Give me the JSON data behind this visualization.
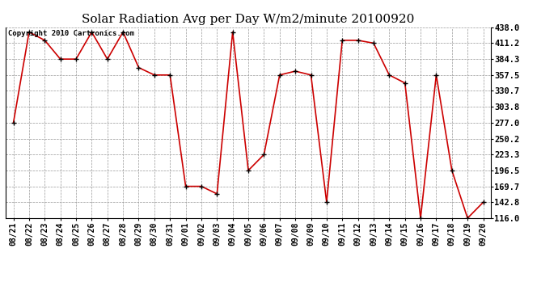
{
  "title": "Solar Radiation Avg per Day W/m2/minute 20100920",
  "copyright_text": "Copyright 2010 Cartronics.com",
  "dates": [
    "08/21",
    "08/22",
    "08/23",
    "08/24",
    "08/25",
    "08/26",
    "08/27",
    "08/28",
    "08/29",
    "08/30",
    "08/31",
    "09/01",
    "09/02",
    "09/03",
    "09/04",
    "09/05",
    "09/06",
    "09/07",
    "09/08",
    "09/09",
    "09/10",
    "09/11",
    "09/12",
    "09/13",
    "09/14",
    "09/15",
    "09/16",
    "09/17",
    "09/18",
    "09/19",
    "09/20"
  ],
  "values": [
    277.0,
    430.0,
    416.0,
    384.3,
    384.3,
    430.0,
    384.3,
    430.0,
    370.0,
    357.5,
    357.5,
    169.7,
    169.7,
    157.0,
    430.0,
    196.5,
    223.3,
    357.5,
    364.0,
    357.5,
    142.8,
    416.0,
    416.0,
    411.2,
    357.5,
    344.0,
    116.0,
    357.5,
    196.5,
    116.0,
    142.8
  ],
  "line_color": "#cc0000",
  "marker_color": "#000000",
  "bg_color": "#ffffff",
  "grid_color": "#999999",
  "ymin": 116.0,
  "ymax": 438.0,
  "yticks": [
    438.0,
    411.2,
    384.3,
    357.5,
    330.7,
    303.8,
    277.0,
    250.2,
    223.3,
    196.5,
    169.7,
    142.8,
    116.0
  ]
}
